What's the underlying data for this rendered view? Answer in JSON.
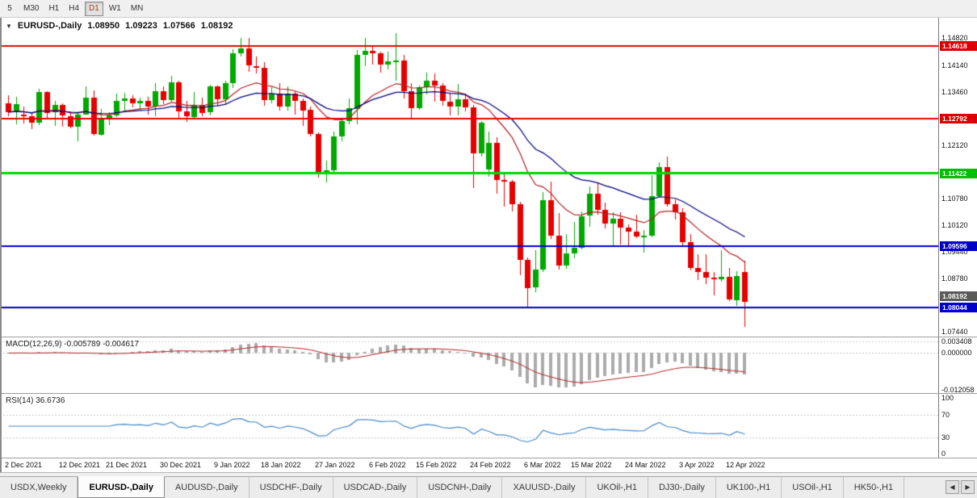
{
  "toolbar": {
    "timeframes": [
      {
        "label": "5",
        "active": false
      },
      {
        "label": "M30",
        "active": false
      },
      {
        "label": "H1",
        "active": false
      },
      {
        "label": "H4",
        "active": false
      },
      {
        "label": "D1",
        "active": true
      },
      {
        "label": "W1",
        "active": false
      },
      {
        "label": "MN",
        "active": false
      }
    ]
  },
  "chart": {
    "title": {
      "collapse_icon": "▼",
      "symbol": "EURUSD-,Daily",
      "open": "1.08950",
      "high": "1.09223",
      "low": "1.07566",
      "close": "1.08192"
    }
  },
  "chart_data": {
    "type": "candlestick",
    "symbol": "EURUSD",
    "timeframe": "Daily",
    "y_range": [
      1.073,
      1.1533
    ],
    "colors": {
      "up": "#00A800",
      "down": "#E60000"
    },
    "price_axis_labels": [
      "1.14820",
      "1.14140",
      "1.13460",
      "1.12120",
      "1.10780",
      "1.10120",
      "1.09440",
      "1.08780",
      "1.07440"
    ],
    "hlines": [
      {
        "value": 1.14618,
        "label": "1.14618",
        "color": "#E80000",
        "badge_bg": "#DC0000",
        "width": 2
      },
      {
        "value": 1.12792,
        "label": "1.12792",
        "color": "#E80000",
        "badge_bg": "#DC0000",
        "width": 2
      },
      {
        "value": 1.11422,
        "label": "1.11422",
        "color": "#00D800",
        "badge_bg": "#00BE00",
        "width": 3
      },
      {
        "value": 1.09596,
        "label": "1.09596",
        "color": "#0000C8",
        "badge_bg": "#0000C8",
        "width": 2
      },
      {
        "value": 1.08044,
        "label": "1.08044",
        "color": "#0000C8",
        "badge_bg": "#0000C8",
        "width": 2
      }
    ],
    "current_price": {
      "value": 1.08192,
      "label": "1.08192",
      "badge_bg": "#5A5A5A"
    },
    "ma": [
      {
        "period": 14,
        "type": "ema",
        "color": "#B22222"
      },
      {
        "period": 28,
        "type": "ema",
        "color": "#00007D"
      }
    ],
    "candles": [
      [
        1.1318,
        1.1339,
        1.1287,
        1.1296
      ],
      [
        1.1296,
        1.1334,
        1.1266,
        1.1316
      ],
      [
        1.129,
        1.131,
        1.1267,
        1.1285
      ],
      [
        1.1285,
        1.1294,
        1.1253,
        1.1268
      ],
      [
        1.1268,
        1.1355,
        1.1263,
        1.1346
      ],
      [
        1.1346,
        1.1349,
        1.128,
        1.1294
      ],
      [
        1.1294,
        1.1324,
        1.1262,
        1.1313
      ],
      [
        1.1313,
        1.1319,
        1.126,
        1.1286
      ],
      [
        1.1286,
        1.1297,
        1.1254,
        1.126
      ],
      [
        1.126,
        1.1296,
        1.1222,
        1.129
      ],
      [
        1.129,
        1.136,
        1.1289,
        1.1332
      ],
      [
        1.1332,
        1.135,
        1.1236,
        1.124
      ],
      [
        1.124,
        1.1304,
        1.1237,
        1.128
      ],
      [
        1.128,
        1.1295,
        1.1263,
        1.1287
      ],
      [
        1.1287,
        1.1343,
        1.1285,
        1.1324
      ],
      [
        1.1324,
        1.1344,
        1.13,
        1.133
      ],
      [
        1.133,
        1.1338,
        1.1308,
        1.1318
      ],
      [
        1.1318,
        1.1333,
        1.1303,
        1.1325
      ],
      [
        1.1325,
        1.1334,
        1.1289,
        1.131
      ],
      [
        1.131,
        1.1369,
        1.1286,
        1.1348
      ],
      [
        1.1348,
        1.136,
        1.1315,
        1.1325
      ],
      [
        1.1325,
        1.1386,
        1.1321,
        1.137
      ],
      [
        1.137,
        1.1375,
        1.1279,
        1.1297
      ],
      [
        1.1297,
        1.1324,
        1.1272,
        1.1285
      ],
      [
        1.1285,
        1.1347,
        1.1283,
        1.1315
      ],
      [
        1.1315,
        1.1332,
        1.1285,
        1.1295
      ],
      [
        1.1295,
        1.1365,
        1.1288,
        1.136
      ],
      [
        1.136,
        1.1363,
        1.1313,
        1.1328
      ],
      [
        1.1328,
        1.1374,
        1.1314,
        1.1368
      ],
      [
        1.1368,
        1.1453,
        1.1355,
        1.1443
      ],
      [
        1.1443,
        1.1482,
        1.1435,
        1.1455
      ],
      [
        1.1455,
        1.1483,
        1.1398,
        1.1412
      ],
      [
        1.1412,
        1.1435,
        1.1393,
        1.1407
      ],
      [
        1.1407,
        1.1422,
        1.1313,
        1.1326
      ],
      [
        1.1326,
        1.1358,
        1.1318,
        1.1343
      ],
      [
        1.1343,
        1.1369,
        1.1301,
        1.131
      ],
      [
        1.131,
        1.136,
        1.13,
        1.1343
      ],
      [
        1.1343,
        1.1349,
        1.129,
        1.1325
      ],
      [
        1.1325,
        1.1331,
        1.1263,
        1.1301
      ],
      [
        1.1301,
        1.131,
        1.1235,
        1.124
      ],
      [
        1.124,
        1.1245,
        1.1131,
        1.1145
      ],
      [
        1.1145,
        1.1175,
        1.1121,
        1.115
      ],
      [
        1.115,
        1.1248,
        1.1141,
        1.1235
      ],
      [
        1.1235,
        1.1279,
        1.1222,
        1.1273
      ],
      [
        1.1273,
        1.1331,
        1.1267,
        1.1305
      ],
      [
        1.1305,
        1.1452,
        1.1266,
        1.144
      ],
      [
        1.144,
        1.1483,
        1.1412,
        1.145
      ],
      [
        1.145,
        1.1459,
        1.1415,
        1.1443
      ],
      [
        1.1443,
        1.1448,
        1.1396,
        1.1415
      ],
      [
        1.1415,
        1.1448,
        1.1403,
        1.1423
      ],
      [
        1.1423,
        1.1495,
        1.1375,
        1.1426
      ],
      [
        1.1426,
        1.1439,
        1.133,
        1.1348
      ],
      [
        1.1348,
        1.1369,
        1.1278,
        1.1305
      ],
      [
        1.1305,
        1.1362,
        1.1301,
        1.1358
      ],
      [
        1.1358,
        1.1395,
        1.134,
        1.1375
      ],
      [
        1.1375,
        1.1394,
        1.1324,
        1.1362
      ],
      [
        1.1362,
        1.1369,
        1.1312,
        1.1323
      ],
      [
        1.1323,
        1.1345,
        1.1288,
        1.131
      ],
      [
        1.131,
        1.1366,
        1.1287,
        1.1328
      ],
      [
        1.1328,
        1.1343,
        1.1299,
        1.1308
      ],
      [
        1.1308,
        1.1315,
        1.1106,
        1.1192
      ],
      [
        1.1192,
        1.1274,
        1.1184,
        1.127
      ],
      [
        1.1152,
        1.1248,
        1.1135,
        1.1219
      ],
      [
        1.1219,
        1.1232,
        1.109,
        1.1125
      ],
      [
        1.1125,
        1.114,
        1.1058,
        1.1122
      ],
      [
        1.1122,
        1.1125,
        1.1045,
        1.1065
      ],
      [
        1.1065,
        1.107,
        1.0886,
        1.0925
      ],
      [
        1.0925,
        1.0931,
        1.0806,
        1.0855
      ],
      [
        1.0855,
        1.095,
        1.0845,
        1.09
      ],
      [
        1.09,
        1.1095,
        1.0895,
        1.1075
      ],
      [
        1.1075,
        1.1121,
        1.0977,
        1.0985
      ],
      [
        1.0985,
        1.1043,
        1.0901,
        1.091
      ],
      [
        1.091,
        1.099,
        1.0902,
        1.094
      ],
      [
        1.094,
        1.102,
        1.0928,
        1.0955
      ],
      [
        1.0955,
        1.1046,
        1.095,
        1.1035
      ],
      [
        1.1035,
        1.111,
        1.1009,
        1.109
      ],
      [
        1.109,
        1.1119,
        1.1038,
        1.105
      ],
      [
        1.105,
        1.1069,
        1.1005,
        1.1015
      ],
      [
        1.1015,
        1.1045,
        1.0962,
        1.1028
      ],
      [
        1.1028,
        1.1044,
        1.0963,
        1.1005
      ],
      [
        1.1005,
        1.1014,
        1.0962,
        1.0995
      ],
      [
        1.0995,
        1.1039,
        1.098,
        1.0982
      ],
      [
        1.0982,
        1.1,
        1.0944,
        1.0985
      ],
      [
        1.0985,
        1.1137,
        1.098,
        1.1085
      ],
      [
        1.1085,
        1.1171,
        1.1084,
        1.1158
      ],
      [
        1.1158,
        1.1185,
        1.106,
        1.1065
      ],
      [
        1.1065,
        1.1077,
        1.1027,
        1.1045
      ],
      [
        1.1045,
        1.1055,
        1.096,
        1.097
      ],
      [
        1.097,
        1.099,
        1.0898,
        1.0905
      ],
      [
        1.0905,
        1.0939,
        1.0874,
        1.0895
      ],
      [
        1.0895,
        1.0938,
        1.0863,
        1.088
      ],
      [
        1.088,
        1.0895,
        1.0837,
        1.0875
      ],
      [
        1.0875,
        1.095,
        1.087,
        1.0882
      ],
      [
        1.0882,
        1.0904,
        1.0821,
        1.0825
      ],
      [
        1.0825,
        1.0896,
        1.0808,
        1.0885
      ],
      [
        1.0895,
        1.09223,
        1.07566,
        1.08192
      ]
    ],
    "date_ticks": [
      {
        "label": "2 Dec 2021",
        "i": 0
      },
      {
        "label": "12 Dec 2021",
        "i": 7
      },
      {
        "label": "21 Dec 2021",
        "i": 13
      },
      {
        "label": "30 Dec 2021",
        "i": 20
      },
      {
        "label": "9 Jan 2022",
        "i": 27
      },
      {
        "label": "18 Jan 2022",
        "i": 33
      },
      {
        "label": "27 Jan 2022",
        "i": 40
      },
      {
        "label": "6 Feb 2022",
        "i": 47
      },
      {
        "label": "15 Feb 2022",
        "i": 53
      },
      {
        "label": "24 Feb 2022",
        "i": 60
      },
      {
        "label": "6 Mar 2022",
        "i": 67
      },
      {
        "label": "15 Mar 2022",
        "i": 73
      },
      {
        "label": "24 Mar 2022",
        "i": 80
      },
      {
        "label": "3 Apr 2022",
        "i": 87
      },
      {
        "label": "12 Apr 2022",
        "i": 93
      }
    ],
    "macd": {
      "label": "MACD(12,26,9) -0.005789 -0.004617",
      "params": [
        12,
        26,
        9
      ],
      "axis": [
        "0.003408",
        "0.000000",
        "-0.012058"
      ],
      "hist_color": "#ABABAB",
      "signal_color": "#B22222"
    },
    "rsi": {
      "label": "RSI(14) 36.6736",
      "period": 14,
      "axis": [
        "100",
        "70",
        "30",
        "0"
      ],
      "levels": [
        70,
        30
      ],
      "color": "#4688C8"
    }
  },
  "tabs": {
    "items": [
      "USDX,Weekly",
      "EURUSD-,Daily",
      "AUDUSD-,Daily",
      "USDCHF-,Daily",
      "USDCAD-,Daily",
      "USDCNH-,Daily",
      "XAUUSD-,Daily",
      "UKOil-,H1",
      "DJ30-,Daily",
      "UK100-,H1",
      "USOil-,H1",
      "HK50-,H1"
    ],
    "active_index": 1,
    "left_arrow": "◀",
    "right_arrow": "▶"
  }
}
